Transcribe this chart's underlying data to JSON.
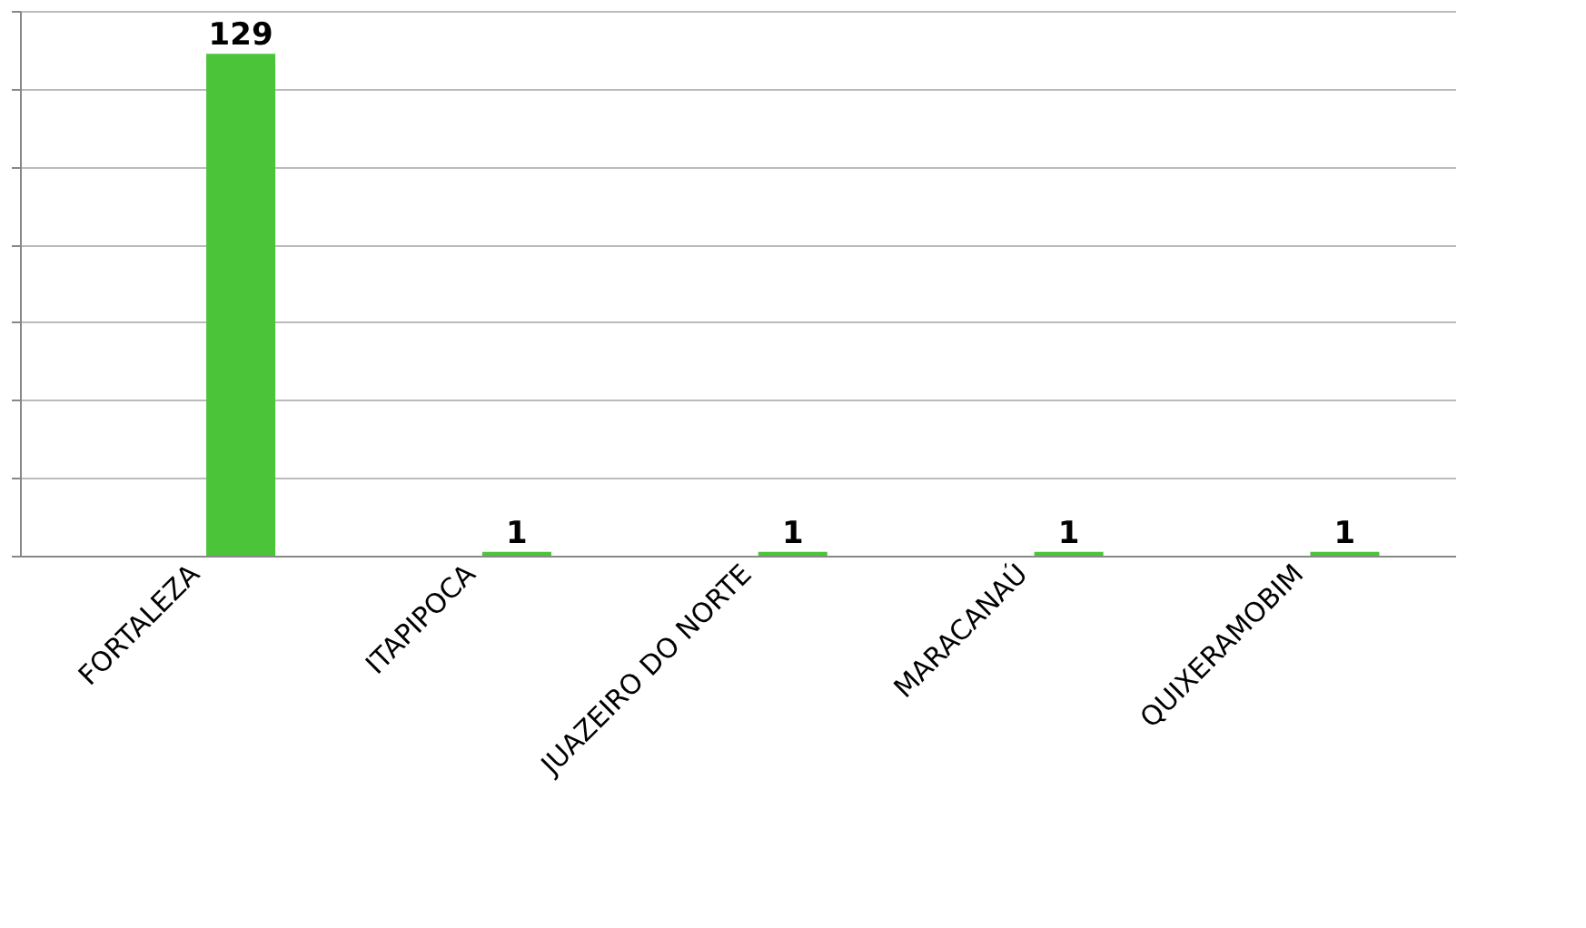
{
  "chart_data": {
    "type": "bar",
    "categories": [
      "FORTALEZA",
      "ITAPIPOCA",
      "JUAZEIRO DO NORTE",
      "MARACANAÚ",
      "QUIXERAMOBIM"
    ],
    "series": [
      {
        "color": "#1a4a7e",
        "values": [
          0,
          0,
          0,
          0,
          0
        ]
      },
      {
        "color": "#4cc43a",
        "values": [
          129,
          1,
          1,
          1,
          1
        ],
        "value_labels": [
          "129",
          "1",
          "1",
          "1",
          "1"
        ]
      }
    ],
    "ylim": [
      0,
      140
    ],
    "yticks": [
      {
        "value": 0,
        "label": null
      },
      {
        "value": 20,
        "label": null
      },
      {
        "value": 40,
        "label": null
      },
      {
        "value": 60,
        "label": null
      },
      {
        "value": 80,
        "label": null
      },
      {
        "value": 100,
        "label": null
      },
      {
        "value": 120,
        "label": null
      },
      {
        "value": 140,
        "label": null
      }
    ],
    "tick_labels": "x",
    "grid": "y",
    "legend": false
  }
}
